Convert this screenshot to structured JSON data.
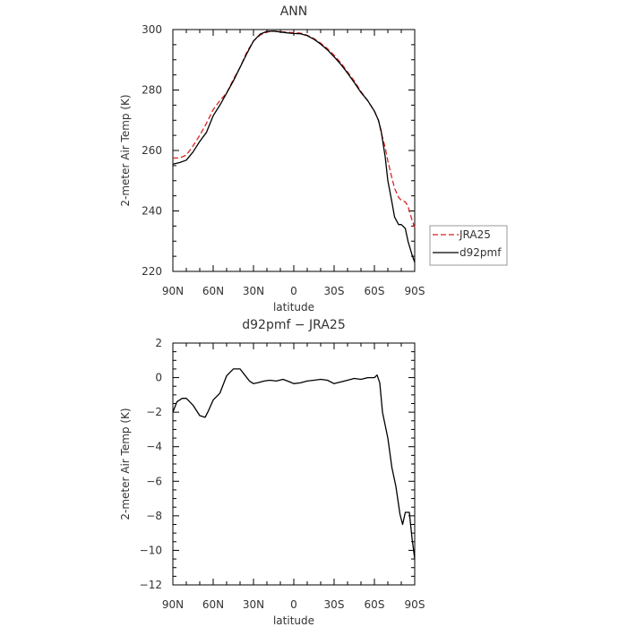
{
  "chart_data": [
    {
      "type": "line",
      "title": "ANN",
      "xlabel": "latitude",
      "ylabel": "2-meter Air Temp (K)",
      "xlim": [
        90,
        -90
      ],
      "ylim": [
        220,
        300
      ],
      "x_ticks": [
        90,
        60,
        30,
        0,
        -30,
        -60,
        -90
      ],
      "x_tick_labels": [
        "90N",
        "60N",
        "30N",
        "0",
        "30S",
        "60S",
        "90S"
      ],
      "y_ticks": [
        220,
        240,
        260,
        280,
        300
      ],
      "y_tick_labels": [
        "220",
        "240",
        "260",
        "280",
        "300"
      ],
      "legend_position": "right",
      "series": [
        {
          "name": "JRA25",
          "color": "#dd2222",
          "dash": "dashed",
          "x": [
            90,
            85,
            80,
            75,
            70,
            65,
            60,
            55,
            50,
            45,
            40,
            35,
            30,
            25,
            20,
            15,
            10,
            5,
            0,
            -5,
            -10,
            -15,
            -20,
            -25,
            -30,
            -35,
            -40,
            -45,
            -50,
            -55,
            -60,
            -63,
            -65,
            -68,
            -70,
            -73,
            -75,
            -78,
            -80,
            -83,
            -85,
            -88,
            -90
          ],
          "y": [
            257.5,
            257.5,
            258.5,
            261.5,
            265,
            269,
            273.5,
            276.5,
            279,
            283.5,
            287.5,
            292.5,
            296.2,
            298.2,
            299.2,
            299.5,
            299.3,
            299.1,
            299,
            298.8,
            298.1,
            297,
            295.5,
            293.7,
            291.5,
            289,
            286,
            283,
            279.5,
            276.5,
            273,
            270,
            266,
            261,
            256.5,
            251,
            247.5,
            244.5,
            243.5,
            243,
            241.5,
            237,
            234.5
          ]
        },
        {
          "name": "d92pmf",
          "color": "#000000",
          "dash": "solid",
          "x": [
            90,
            85,
            80,
            75,
            70,
            65,
            60,
            55,
            50,
            45,
            40,
            35,
            30,
            25,
            20,
            15,
            10,
            5,
            0,
            -5,
            -10,
            -15,
            -20,
            -25,
            -30,
            -35,
            -40,
            -45,
            -50,
            -55,
            -60,
            -63,
            -65,
            -68,
            -70,
            -73,
            -75,
            -78,
            -80,
            -83,
            -85,
            -88,
            -90
          ],
          "y": [
            255.5,
            256,
            256.8,
            259.5,
            263,
            266,
            271.5,
            275,
            279,
            283,
            287.5,
            292,
            296.2,
            298.5,
            299.4,
            299.5,
            299.2,
            298.9,
            298.7,
            298.6,
            298,
            296.8,
            295.2,
            293.3,
            291,
            288.5,
            285.6,
            282.5,
            279.2,
            276.5,
            273,
            270,
            266.5,
            258,
            250,
            243,
            238,
            235.5,
            235.5,
            234.2,
            230,
            225.5,
            223
          ]
        }
      ]
    },
    {
      "type": "line",
      "title": "d92pmf − JRA25",
      "xlabel": "latitude",
      "ylabel": "2-meter Air Temp (K)",
      "xlim": [
        90,
        -90
      ],
      "ylim": [
        -12,
        2
      ],
      "x_ticks": [
        90,
        60,
        30,
        0,
        -30,
        -60,
        -90
      ],
      "x_tick_labels": [
        "90N",
        "60N",
        "30N",
        "0",
        "30S",
        "60S",
        "90S"
      ],
      "y_ticks": [
        -12,
        -10,
        -8,
        -6,
        -4,
        -2,
        0,
        2
      ],
      "y_tick_labels": [
        "−12",
        "−10",
        "−8",
        "−6",
        "−4",
        "−2",
        "0",
        "2"
      ],
      "series": [
        {
          "color": "#000000",
          "dash": "solid",
          "x": [
            90,
            87,
            83,
            80,
            75,
            70,
            66,
            64,
            60,
            55,
            50,
            45,
            40,
            37,
            33,
            30,
            27,
            22,
            18,
            13,
            8,
            3,
            0,
            -5,
            -10,
            -15,
            -20,
            -25,
            -30,
            -35,
            -40,
            -45,
            -50,
            -55,
            -60,
            -62,
            -64,
            -66,
            -70,
            -73,
            -76,
            -79,
            -81,
            -83,
            -86,
            -88,
            -90
          ],
          "y": [
            -2,
            -1.4,
            -1.2,
            -1.2,
            -1.6,
            -2.2,
            -2.3,
            -2,
            -1.3,
            -0.9,
            0.1,
            0.5,
            0.5,
            0.2,
            -0.2,
            -0.35,
            -0.3,
            -0.2,
            -0.15,
            -0.2,
            -0.1,
            -0.25,
            -0.35,
            -0.3,
            -0.2,
            -0.15,
            -0.1,
            -0.15,
            -0.35,
            -0.25,
            -0.15,
            -0.05,
            -0.1,
            0,
            0,
            0.15,
            -0.3,
            -2,
            -3.5,
            -5.2,
            -6.3,
            -7.9,
            -8.5,
            -7.8,
            -7.8,
            -9.3,
            -10.5
          ]
        }
      ]
    }
  ]
}
